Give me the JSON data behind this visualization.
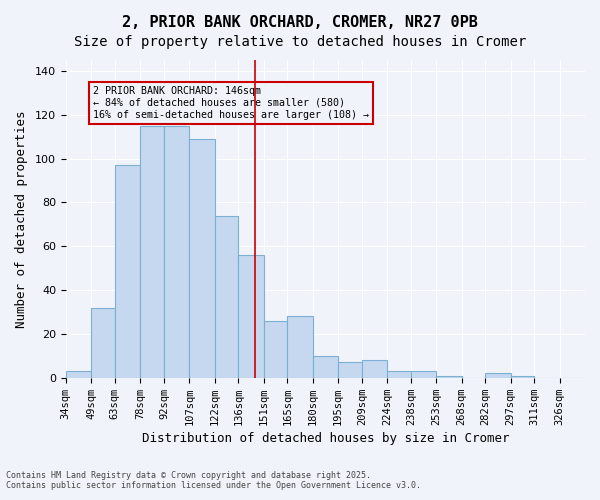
{
  "title1": "2, PRIOR BANK ORCHARD, CROMER, NR27 0PB",
  "title2": "Size of property relative to detached houses in Cromer",
  "xlabel": "Distribution of detached houses by size in Cromer",
  "ylabel": "Number of detached properties",
  "categories": [
    "34sqm",
    "49sqm",
    "63sqm",
    "78sqm",
    "92sqm",
    "107sqm",
    "122sqm",
    "136sqm",
    "151sqm",
    "165sqm",
    "180sqm",
    "195sqm",
    "209sqm",
    "224sqm",
    "238sqm",
    "253sqm",
    "268sqm",
    "282sqm",
    "297sqm",
    "311sqm",
    "326sqm"
  ],
  "values": [
    3,
    32,
    97,
    115,
    115,
    109,
    109,
    74,
    74,
    56,
    56,
    26,
    26,
    28,
    28,
    10,
    10,
    7,
    7,
    8,
    8,
    3,
    3,
    3,
    3,
    1,
    1,
    0,
    2,
    2,
    1,
    1,
    0
  ],
  "bar_heights": [
    3,
    32,
    97,
    115,
    115,
    109,
    109,
    74,
    74,
    56,
    56,
    26,
    26,
    28,
    28,
    10,
    10,
    7,
    7,
    8,
    8,
    3,
    3,
    3,
    3,
    1,
    1,
    0,
    2,
    2,
    1,
    1,
    0
  ],
  "hist_values": [
    3,
    32,
    97,
    115,
    115,
    109,
    74,
    56,
    26,
    28,
    10,
    7,
    8,
    3,
    3,
    1,
    0,
    2,
    1,
    0,
    0
  ],
  "bar_color": "#c5d8f0",
  "bar_edge_color": "#7bafd4",
  "vline_x": 146,
  "vline_color": "#cc0000",
  "annotation_text": "2 PRIOR BANK ORCHARD: 146sqm\n← 84% of detached houses are smaller (580)\n16% of semi-detached houses are larger (108) →",
  "annotation_box_color": "#cc0000",
  "ylim": [
    0,
    145
  ],
  "xlim_min": 34,
  "xlim_max": 341,
  "bin_width": 14.35,
  "footer": "Contains HM Land Registry data © Crown copyright and database right 2025.\nContains public sector information licensed under the Open Government Licence v3.0.",
  "background_color": "#f0f4fa",
  "grid_color": "#ffffff",
  "title_fontsize": 11,
  "subtitle_fontsize": 10,
  "tick_fontsize": 7.5,
  "label_fontsize": 9
}
